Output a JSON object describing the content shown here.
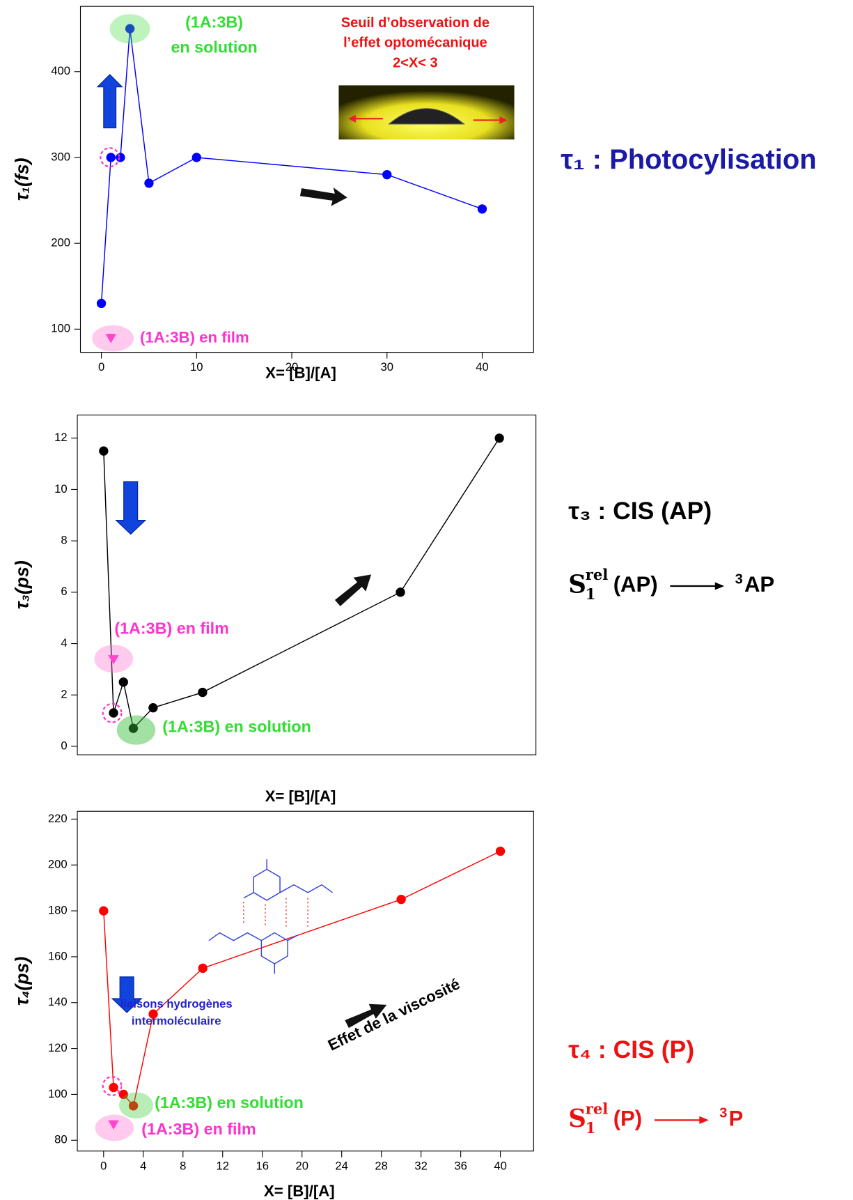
{
  "chart_data": [
    {
      "type": "line",
      "ylabel": "τ₁(fs)",
      "xlabel": "X= [B]/[A]",
      "x": [
        0,
        1,
        2,
        3,
        5,
        10,
        30,
        40
      ],
      "series": [
        {
          "color": "#0000ff",
          "values": [
            130,
            300,
            300,
            450,
            270,
            300,
            280,
            240
          ]
        },
        {
          "color": "#ff33cc",
          "marker": "triangle",
          "line": false,
          "values": [
            null,
            90,
            null,
            null,
            null,
            null,
            null,
            null
          ]
        }
      ],
      "xlim": [
        -2.2,
        45.4
      ],
      "ylim": [
        73,
        476
      ],
      "xticks": [
        0,
        10,
        20,
        30,
        40
      ],
      "yticks": [
        100,
        200,
        300,
        400
      ],
      "annotations": [
        {
          "text": "(1A:3B)",
          "color": "#33dd33"
        },
        {
          "text": "en solution",
          "color": "#33dd33"
        },
        {
          "text": "Seuil d’observation de",
          "color": "#ee1111"
        },
        {
          "text": "l’effet optomécanique",
          "color": "#ee1111"
        },
        {
          "text": "2<X< 3",
          "color": "#ee1111"
        },
        {
          "text": "(1A:3B) en film",
          "color": "#ff33cc"
        }
      ],
      "side_title": "τ₁ : Photocylisation",
      "side_color": "#1a1aa6"
    },
    {
      "type": "line",
      "ylabel": "τ₃(ps)",
      "xlabel": "X= [B]/[A]",
      "x": [
        0,
        1,
        2,
        3,
        5,
        10,
        30,
        40
      ],
      "series": [
        {
          "color": "#000000",
          "values": [
            11.5,
            1.3,
            2.5,
            0.7,
            1.5,
            2.1,
            6,
            12
          ]
        },
        {
          "color": "#ff33cc",
          "marker": "triangle",
          "line": false,
          "values": [
            null,
            3.4,
            null,
            null,
            null,
            null,
            null,
            null
          ]
        }
      ],
      "xlim": [
        -2.66,
        43.7
      ],
      "ylim": [
        -0.33,
        12.9
      ],
      "yticks": [
        0,
        2,
        4,
        6,
        8,
        10,
        12
      ],
      "annotations": [
        {
          "text": "(1A:3B) en film",
          "color": "#ff33cc"
        },
        {
          "text": "(1A:3B) en solution",
          "color": "#33dd33"
        }
      ],
      "side_title": "τ₃ : CIS (AP)",
      "side_color": "#000000",
      "process": {
        "state": "S",
        "sub": "1",
        "sup": "rel",
        "arg": "(AP)",
        "product_sup": "3",
        "product": "AP"
      }
    },
    {
      "type": "line",
      "ylabel": "τ₄(ps)",
      "xlabel": "X= [B]/[A]",
      "x": [
        0,
        1,
        2,
        3,
        5,
        10,
        30,
        40
      ],
      "series": [
        {
          "color": "#ff0000",
          "values": [
            180,
            103,
            100,
            95,
            135,
            155,
            185,
            206
          ]
        },
        {
          "color": "#ff33cc",
          "marker": "triangle",
          "line": false,
          "values": [
            null,
            87,
            null,
            null,
            null,
            null,
            null,
            null
          ]
        }
      ],
      "xlim": [
        -2.65,
        43.35
      ],
      "ylim": [
        75.3,
        223.4
      ],
      "xticks": [
        0,
        4,
        8,
        12,
        16,
        20,
        24,
        28,
        32,
        36,
        40
      ],
      "yticks": [
        80,
        100,
        120,
        140,
        160,
        180,
        200,
        220
      ],
      "annotations": [
        {
          "text": "liaisons hydrogènes",
          "color": "#2222cc"
        },
        {
          "text": "intermoléculaire",
          "color": "#2222cc"
        },
        {
          "text": "Effet de la viscosité",
          "color": "#000000"
        },
        {
          "text": "(1A:3B) en solution",
          "color": "#33dd33"
        },
        {
          "text": "(1A:3B) en film",
          "color": "#ff33cc"
        }
      ],
      "side_title": "τ₄ : CIS (P)",
      "side_color": "#ee1111",
      "process": {
        "state": "S",
        "sub": "1",
        "sup": "rel",
        "arg": "(P)",
        "product_sup": "3",
        "product": "P"
      }
    }
  ]
}
